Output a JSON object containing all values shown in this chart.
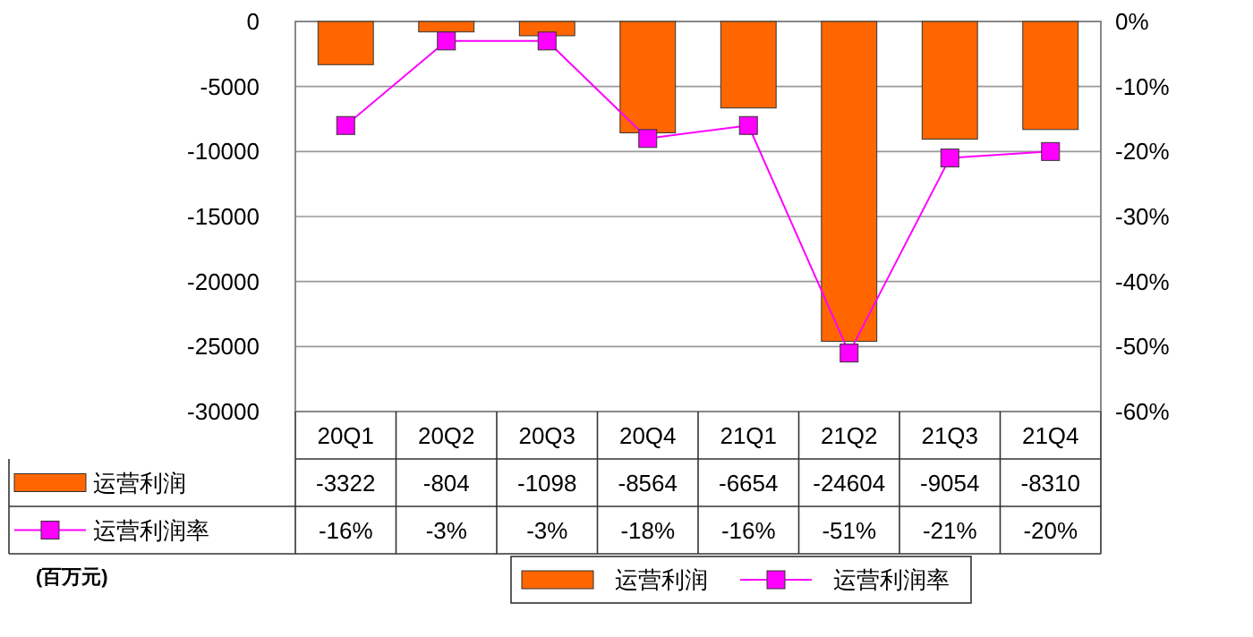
{
  "chart_data": {
    "type": "bar",
    "categories": [
      "20Q1",
      "20Q2",
      "20Q3",
      "20Q4",
      "21Q1",
      "21Q2",
      "21Q3",
      "21Q4"
    ],
    "series": [
      {
        "name": "运营利润",
        "color": "#ff6600",
        "values": [
          -3322,
          -804,
          -1098,
          -8564,
          -6654,
          -24604,
          -9054,
          -8310
        ],
        "value_labels": [
          "-3322",
          "-804",
          "-1098",
          "-8564",
          "-6654",
          "-24604",
          "-9054",
          "-8310"
        ]
      },
      {
        "name": "运营利润率",
        "type": "line",
        "axis": "y2",
        "color": "#ff00ff",
        "values": [
          -16,
          -3,
          -3,
          -18,
          -16,
          -51,
          -21,
          -20
        ],
        "value_labels": [
          "-16%",
          "-3%",
          "-3%",
          "-18%",
          "-16%",
          "-51%",
          "-21%",
          "-20%"
        ]
      }
    ],
    "ylim": [
      -30000,
      0
    ],
    "yticks": [
      -30000,
      -25000,
      -20000,
      -15000,
      -10000,
      -5000,
      0
    ],
    "y2lim": [
      -60,
      0
    ],
    "y2ticks": [
      {
        "value": -60,
        "label": "-60%"
      },
      {
        "value": -50,
        "label": "-50%"
      },
      {
        "value": -40,
        "label": "-40%"
      },
      {
        "value": -30,
        "label": "-30%"
      },
      {
        "value": -20,
        "label": "-20%"
      },
      {
        "value": -10,
        "label": "-10%"
      },
      {
        "value": 0,
        "label": "0%"
      }
    ],
    "grid": "y",
    "legend": "bottom",
    "marker": "square",
    "annotations": [
      "(百万元)"
    ]
  }
}
